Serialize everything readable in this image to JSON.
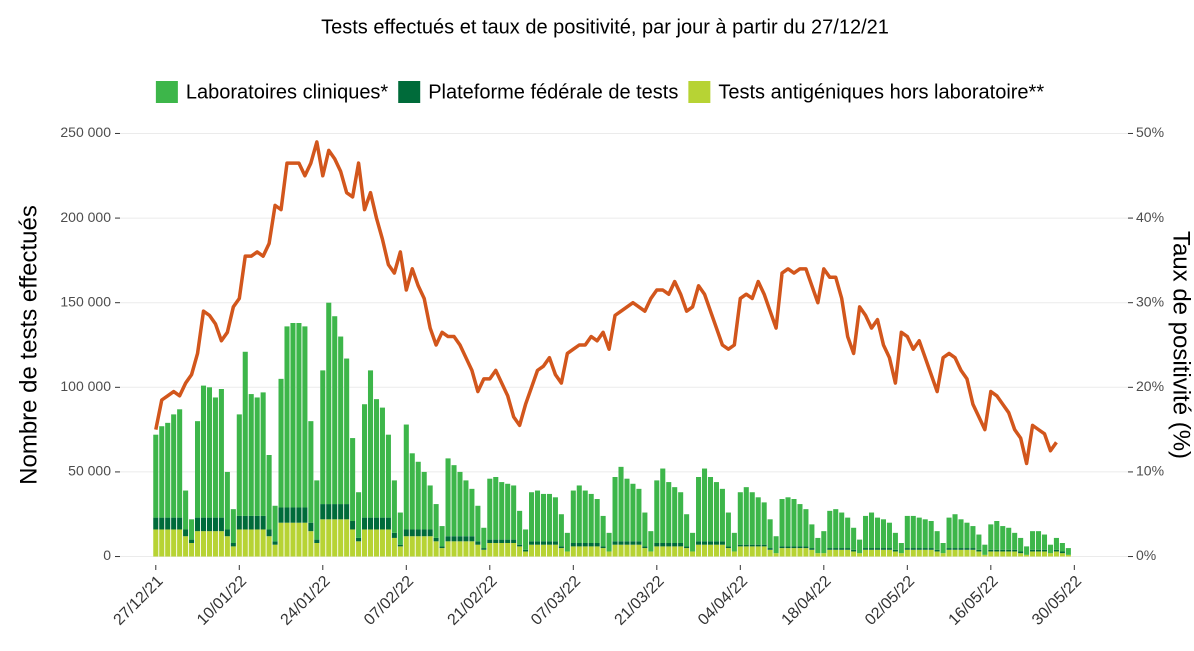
{
  "chart_data": {
    "type": "bar",
    "stacked": true,
    "title": "Tests effectués et taux de positivité, par jour à partir du 27/12/21",
    "y_label": "Nombre de tests effectués",
    "y2_label": "Taux de positivité (%)",
    "legend": "top",
    "grid": true,
    "x": [
      "27/12/21",
      "28/12/21",
      "29/12/21",
      "30/12/21",
      "31/12/21",
      "01/01/22",
      "02/01/22",
      "03/01/22",
      "04/01/22",
      "05/01/22",
      "06/01/22",
      "07/01/22",
      "08/01/22",
      "09/01/22",
      "10/01/22",
      "11/01/22",
      "12/01/22",
      "13/01/22",
      "14/01/22",
      "15/01/22",
      "16/01/22",
      "17/01/22",
      "18/01/22",
      "19/01/22",
      "20/01/22",
      "21/01/22",
      "22/01/22",
      "23/01/22",
      "24/01/22",
      "25/01/22",
      "26/01/22",
      "27/01/22",
      "28/01/22",
      "29/01/22",
      "30/01/22",
      "31/01/22",
      "01/02/22",
      "02/02/22",
      "03/02/22",
      "04/02/22",
      "05/02/22",
      "06/02/22",
      "07/02/22",
      "08/02/22",
      "09/02/22",
      "10/02/22",
      "11/02/22",
      "12/02/22",
      "13/02/22",
      "14/02/22",
      "15/02/22",
      "16/02/22",
      "17/02/22",
      "18/02/22",
      "19/02/22",
      "20/02/22",
      "21/02/22",
      "22/02/22",
      "23/02/22",
      "24/02/22",
      "25/02/22",
      "26/02/22",
      "27/02/22",
      "28/02/22",
      "01/03/22",
      "02/03/22",
      "03/03/22",
      "04/03/22",
      "05/03/22",
      "06/03/22",
      "07/03/22",
      "08/03/22",
      "09/03/22",
      "10/03/22",
      "11/03/22",
      "12/03/22",
      "13/03/22",
      "14/03/22",
      "15/03/22",
      "16/03/22",
      "17/03/22",
      "18/03/22",
      "19/03/22",
      "20/03/22",
      "21/03/22",
      "22/03/22",
      "23/03/22",
      "24/03/22",
      "25/03/22",
      "26/03/22",
      "27/03/22",
      "28/03/22",
      "29/03/22",
      "30/03/22",
      "31/03/22",
      "01/04/22",
      "02/04/22",
      "03/04/22",
      "04/04/22",
      "05/04/22",
      "06/04/22",
      "07/04/22",
      "08/04/22",
      "09/04/22",
      "10/04/22",
      "11/04/22",
      "12/04/22",
      "13/04/22",
      "14/04/22",
      "15/04/22",
      "16/04/22",
      "17/04/22",
      "18/04/22",
      "19/04/22",
      "20/04/22",
      "21/04/22",
      "22/04/22",
      "23/04/22",
      "24/04/22",
      "25/04/22",
      "26/04/22",
      "27/04/22",
      "28/04/22",
      "29/04/22",
      "30/04/22",
      "01/05/22",
      "02/05/22",
      "03/05/22",
      "04/05/22",
      "05/05/22",
      "06/05/22",
      "07/05/22",
      "08/05/22",
      "09/05/22",
      "10/05/22",
      "11/05/22",
      "12/05/22",
      "13/05/22",
      "14/05/22",
      "15/05/22",
      "16/05/22",
      "17/05/22",
      "18/05/22",
      "19/05/22",
      "20/05/22",
      "21/05/22",
      "22/05/22",
      "23/05/22",
      "24/05/22",
      "25/05/22",
      "26/05/22",
      "27/05/22",
      "28/05/22",
      "29/05/22"
    ],
    "xlim": [
      "21/12/21",
      "08/06/22"
    ],
    "xticks": [
      "27/12/21",
      "10/01/22",
      "24/01/22",
      "07/02/22",
      "21/02/22",
      "07/03/22",
      "21/03/22",
      "04/04/22",
      "18/04/22",
      "02/05/22",
      "16/05/22",
      "30/05/22"
    ],
    "ylim": [
      -5000,
      255000
    ],
    "yticks": [
      {
        "value": 0,
        "label": "0"
      },
      {
        "value": 50000,
        "label": "50 000"
      },
      {
        "value": 100000,
        "label": "100 000"
      },
      {
        "value": 150000,
        "label": "150 000"
      },
      {
        "value": 200000,
        "label": "200 000"
      },
      {
        "value": 250000,
        "label": "250 000"
      }
    ],
    "y2lim": [
      -1,
      51
    ],
    "y2ticks": [
      {
        "value": 0,
        "label": "0%"
      },
      {
        "value": 10,
        "label": "10%"
      },
      {
        "value": 20,
        "label": "20%"
      },
      {
        "value": 30,
        "label": "30%"
      },
      {
        "value": 40,
        "label": "40%"
      },
      {
        "value": 50,
        "label": "50%"
      }
    ],
    "series": [
      {
        "name": "Laboratoires cliniques*",
        "color": "#3db64a",
        "values": [
          49000,
          54000,
          56000,
          61000,
          64000,
          23000,
          12000,
          57000,
          78000,
          77000,
          71000,
          76000,
          34000,
          20000,
          60000,
          97000,
          72000,
          70000,
          73000,
          44000,
          21000,
          76000,
          107000,
          109000,
          109000,
          107000,
          60000,
          35000,
          79000,
          119000,
          111000,
          99000,
          86000,
          49000,
          27000,
          67000,
          87000,
          70000,
          65000,
          49000,
          31000,
          19000,
          62000,
          45000,
          40000,
          34000,
          26000,
          20000,
          12000,
          46000,
          42000,
          38000,
          33000,
          28000,
          21000,
          12000,
          36000,
          37000,
          34000,
          33000,
          32000,
          20000,
          12000,
          29000,
          30000,
          28000,
          28000,
          26000,
          19000,
          11000,
          31000,
          34000,
          31000,
          29000,
          26000,
          18000,
          11000,
          38000,
          44000,
          37000,
          34000,
          31000,
          20000,
          12000,
          37000,
          44000,
          36000,
          33000,
          30000,
          19000,
          11000,
          38000,
          43000,
          38000,
          35000,
          31000,
          20000,
          11000,
          31000,
          34000,
          31000,
          28000,
          25000,
          17000,
          10000,
          28000,
          29000,
          28000,
          25000,
          22000,
          14000,
          9000,
          13000,
          22000,
          23000,
          21000,
          18000,
          13000,
          8000,
          19000,
          21000,
          18000,
          17000,
          15000,
          10000,
          6000,
          19000,
          19000,
          18000,
          17000,
          16000,
          11000,
          6000,
          18000,
          20000,
          17000,
          15000,
          13000,
          9000,
          6000,
          15000,
          17000,
          14000,
          13000,
          10000,
          8000,
          5000,
          11000,
          11000,
          9000,
          5000,
          7000,
          5000,
          4000
        ]
      },
      {
        "name": "Plateforme fédérale de tests",
        "color": "#006b3a",
        "values": [
          7000,
          7000,
          7000,
          7000,
          7000,
          4000,
          2000,
          8000,
          8000,
          8000,
          8000,
          8000,
          4000,
          2000,
          8000,
          8000,
          8000,
          8000,
          8000,
          4000,
          2000,
          9000,
          9000,
          9000,
          9000,
          9000,
          5000,
          2000,
          9000,
          9000,
          9000,
          9000,
          9000,
          5000,
          2000,
          7000,
          7000,
          7000,
          7000,
          7000,
          3000,
          1000,
          4000,
          4000,
          4000,
          4000,
          4000,
          2000,
          1000,
          3000,
          3000,
          3000,
          3000,
          3000,
          2000,
          1000,
          2000,
          2000,
          2000,
          2000,
          2000,
          1000,
          1000,
          2000,
          2000,
          2000,
          2000,
          2000,
          1000,
          0,
          2000,
          2000,
          2000,
          2000,
          2000,
          1000,
          0,
          2000,
          2000,
          2000,
          2000,
          2000,
          1000,
          0,
          2000,
          2000,
          2000,
          2000,
          2000,
          1000,
          0,
          2000,
          2000,
          2000,
          2000,
          2000,
          1000,
          0,
          1000,
          1000,
          1000,
          1000,
          1000,
          1000,
          0,
          1000,
          1000,
          1000,
          1000,
          1000,
          1000,
          0,
          0,
          1000,
          1000,
          1000,
          1000,
          1000,
          0,
          1000,
          1000,
          1000,
          1000,
          1000,
          1000,
          0,
          1000,
          1000,
          1000,
          1000,
          1000,
          1000,
          0,
          1000,
          1000,
          1000,
          1000,
          1000,
          1000,
          0,
          1000,
          1000,
          1000,
          1000,
          1000,
          1000,
          0,
          1000,
          1000,
          1000,
          0,
          1000,
          1000,
          0
        ]
      },
      {
        "name": "Tests antigéniques hors laboratoire**",
        "color": "#b7d334",
        "values": [
          16000,
          16000,
          16000,
          16000,
          16000,
          12000,
          8000,
          15000,
          15000,
          15000,
          15000,
          15000,
          12000,
          6000,
          16000,
          16000,
          16000,
          16000,
          16000,
          12000,
          7000,
          20000,
          20000,
          20000,
          20000,
          20000,
          15000,
          8000,
          22000,
          22000,
          22000,
          22000,
          22000,
          16000,
          9000,
          16000,
          16000,
          16000,
          16000,
          16000,
          11000,
          6000,
          12000,
          12000,
          12000,
          12000,
          12000,
          9000,
          5000,
          9000,
          9000,
          9000,
          9000,
          9000,
          7000,
          4000,
          8000,
          8000,
          8000,
          8000,
          8000,
          6000,
          3000,
          7000,
          7000,
          7000,
          7000,
          7000,
          5000,
          3000,
          6000,
          6000,
          6000,
          6000,
          6000,
          5000,
          3000,
          7000,
          7000,
          7000,
          7000,
          7000,
          5000,
          3000,
          6000,
          6000,
          6000,
          6000,
          6000,
          5000,
          3000,
          7000,
          7000,
          7000,
          7000,
          7000,
          5000,
          3000,
          6000,
          6000,
          6000,
          6000,
          6000,
          4000,
          2000,
          5000,
          5000,
          5000,
          5000,
          5000,
          4000,
          2000,
          2000,
          4000,
          4000,
          4000,
          4000,
          3000,
          2000,
          4000,
          4000,
          4000,
          4000,
          4000,
          3000,
          2000,
          4000,
          4000,
          4000,
          4000,
          4000,
          3000,
          2000,
          4000,
          4000,
          4000,
          4000,
          4000,
          3000,
          1000,
          3000,
          3000,
          3000,
          3000,
          3000,
          2000,
          1000,
          3000,
          3000,
          3000,
          2000,
          3000,
          2000,
          1000
        ]
      },
      {
        "type": "line",
        "axis": "y2",
        "color": "#d2561c",
        "values": [
          15,
          18.5,
          19,
          19.5,
          19,
          20.5,
          21.5,
          24,
          29,
          28.5,
          27.5,
          25.5,
          26.5,
          29.5,
          30.5,
          35.5,
          35.5,
          36,
          35.5,
          37,
          41.5,
          41,
          46.5,
          46.5,
          46.5,
          45,
          46.5,
          49,
          45,
          48,
          47,
          45.5,
          43,
          42.5,
          46.5,
          41,
          43,
          40,
          37.5,
          34.5,
          33.5,
          36,
          31.5,
          34,
          32,
          30.5,
          27,
          25,
          26.5,
          26,
          26,
          25,
          23.5,
          22,
          19.5,
          21,
          21,
          22,
          20.5,
          19,
          16.5,
          15.5,
          18,
          20,
          22,
          22.5,
          23.5,
          21.5,
          20.5,
          24,
          24.5,
          25,
          25,
          26,
          25.5,
          26.5,
          24.5,
          28.5,
          29,
          29.5,
          30,
          29.5,
          29,
          30.5,
          31.5,
          31.5,
          31,
          32.5,
          31,
          29,
          29.5,
          32,
          31,
          29,
          27,
          25,
          24.5,
          25,
          30.5,
          31,
          30.5,
          32.5,
          31,
          29,
          27,
          33.5,
          34,
          33.5,
          34,
          34,
          32,
          30,
          34,
          33,
          33,
          30.5,
          26,
          24,
          29.5,
          28.5,
          27,
          28,
          25,
          23.5,
          20.5,
          26.5,
          26,
          24.5,
          25.5,
          23.5,
          21.5,
          19.5,
          23.5,
          24,
          23.5,
          22,
          21,
          18,
          16.5,
          15,
          19.5,
          19,
          18,
          17,
          15,
          14,
          11,
          15.5,
          15,
          14.5,
          12.5,
          13.5,
          null,
          null
        ]
      }
    ]
  }
}
